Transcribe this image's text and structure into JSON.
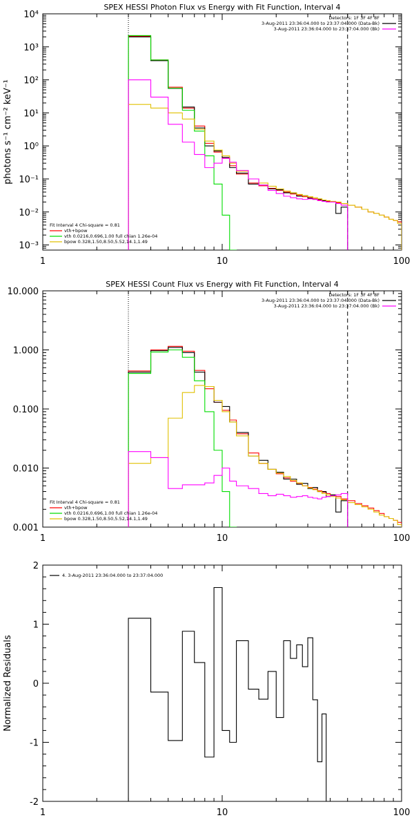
{
  "colors": {
    "data": "#000000",
    "fit_total": "#ff0000",
    "vth": "#00dd00",
    "bpow": "#e0c000",
    "background": "#ff00ff"
  },
  "chart_data": [
    {
      "type": "line",
      "step": true,
      "title": "SPEX HESSI Photon Flux vs Energy with Fit Function, Interval 4",
      "ylabel": "photons s⁻¹ cm⁻² keV⁻¹",
      "xlabel": "",
      "xscale": "log",
      "yscale": "log",
      "xlim": [
        1,
        100
      ],
      "ylim": [
        0.0007,
        10000
      ],
      "xticks": [
        {
          "v": 1,
          "label": "1"
        },
        {
          "v": 10,
          "label": "10"
        },
        {
          "v": 100,
          "label": "100"
        }
      ],
      "yticks": [
        {
          "v": 0.001,
          "label": "10⁻³"
        },
        {
          "v": 0.01,
          "label": "10⁻²"
        },
        {
          "v": 0.1,
          "label": "10⁻¹"
        },
        {
          "v": 1,
          "label": "10⁰"
        },
        {
          "v": 10,
          "label": "10¹"
        },
        {
          "v": 100,
          "label": "10²"
        },
        {
          "v": 1000,
          "label": "10³"
        },
        {
          "v": 10000,
          "label": "10⁴"
        }
      ],
      "vlines": [
        {
          "x": 3,
          "style": "dotted"
        },
        {
          "x": 50,
          "style": "dashed"
        }
      ],
      "legend_topright": [
        {
          "text": "Detectors: 1F 3F 4F 8F",
          "color": ""
        },
        {
          "text": "3-Aug-2011 23:36:04.000 to 23:37:04.000 (Data-Bk)",
          "color": "#000000"
        },
        {
          "text": "3-Aug-2011 23:36:04.000 to 23:37:04.000 (Bk)",
          "color": "#ff00ff"
        }
      ],
      "legend_bottomleft": [
        {
          "text": "Fit Interval 4   Chi-square = 0.81",
          "color": ""
        },
        {
          "text": "vth+bpow",
          "color": "#ff0000"
        },
        {
          "text": "vth 0.0216,0.696,1.00  full chian 1.26e-04",
          "color": "#00dd00"
        },
        {
          "text": "bpow 0.328,1.50,8.50,5.52,14.1,1.49",
          "color": "#e0c000"
        }
      ],
      "edges": [
        3,
        4,
        5,
        6,
        7,
        8,
        9,
        10,
        11,
        12,
        14,
        16,
        18,
        20,
        22,
        24,
        26,
        28,
        30,
        32,
        34,
        36,
        38,
        40,
        43,
        46,
        50,
        55,
        60,
        65,
        70,
        75,
        80,
        85,
        90,
        95,
        100
      ],
      "series": [
        {
          "color": "#ff0000",
          "values": [
            2100,
            400,
            60,
            14,
            4,
            1.2,
            0.65,
            0.42,
            0.25,
            0.14,
            0.075,
            0.062,
            0.052,
            0.045,
            0.04,
            0.035,
            0.032,
            0.029,
            0.027,
            0.025,
            0.023,
            0.022,
            0.021,
            0.02,
            0.019,
            0.018,
            0.016,
            0.014,
            0.012,
            0.01,
            0.009,
            0.008,
            0.007,
            0.006,
            0.0055,
            0.005
          ]
        },
        {
          "color": "#000000",
          "values": [
            2000,
            380,
            55,
            15,
            3.5,
            1.0,
            0.7,
            0.45,
            0.22,
            0.15,
            0.07,
            0.065,
            0.05,
            0.047,
            0.038,
            0.037,
            0.03,
            0.031,
            0.026,
            0.024,
            0.024,
            0.022,
            0.02,
            0.02,
            0.009,
            0.014
          ]
        },
        {
          "color": "#00dd00",
          "values": [
            2200,
            400,
            56,
            12,
            2.8,
            0.5,
            0.07,
            0.008,
            0.0007
          ]
        },
        {
          "color": "#e0c000",
          "values": [
            18,
            14,
            10,
            6.5,
            3.2,
            1.4,
            0.75,
            0.5,
            0.3,
            0.17,
            0.1,
            0.075,
            0.06,
            0.05,
            0.043,
            0.038,
            0.034,
            0.031,
            0.029,
            0.027,
            0.025,
            0.023,
            0.022,
            0.021,
            0.02,
            0.018,
            0.016,
            0.014,
            0.012,
            0.01,
            0.009,
            0.008,
            0.007,
            0.006,
            0.0055,
            0.0045
          ]
        },
        {
          "color": "#ff00ff",
          "values": [
            100,
            30,
            4.5,
            1.3,
            0.55,
            0.22,
            0.3,
            0.42,
            0.32,
            0.18,
            0.1,
            0.065,
            0.045,
            0.036,
            0.03,
            0.027,
            0.025,
            0.024,
            0.025,
            0.024,
            0.022,
            0.021,
            0.02,
            0.02,
            0.018,
            0.016
          ]
        }
      ]
    },
    {
      "type": "line",
      "step": true,
      "title": "SPEX HESSI Count Flux vs Energy with Fit Function, Interval 4",
      "ylabel": "",
      "xlabel": "",
      "xscale": "log",
      "yscale": "log",
      "xlim": [
        1,
        100
      ],
      "ylim": [
        0.001,
        10
      ],
      "xticks": [
        {
          "v": 1,
          "label": "1"
        },
        {
          "v": 10,
          "label": "10"
        },
        {
          "v": 100,
          "label": "100"
        }
      ],
      "yticks": [
        {
          "v": 0.001,
          "label": "0.001"
        },
        {
          "v": 0.01,
          "label": "0.010"
        },
        {
          "v": 0.1,
          "label": "0.100"
        },
        {
          "v": 1,
          "label": "1.000"
        },
        {
          "v": 10,
          "label": "10.000"
        }
      ],
      "vlines": [
        {
          "x": 3,
          "style": "dotted"
        },
        {
          "x": 50,
          "style": "dashed"
        }
      ],
      "legend_topright": [
        {
          "text": "Detectors: 1F 3F 4F 8F",
          "color": ""
        },
        {
          "text": "3-Aug-2011 23:36:04.000 to 23:37:04.000 (Data-Bk)",
          "color": "#000000"
        },
        {
          "text": "3-Aug-2011 23:36:04.000 to 23:37:04.000 (Bk)",
          "color": "#ff00ff"
        }
      ],
      "legend_bottomleft": [
        {
          "text": "Fit Interval 4   Chi-square = 0.81",
          "color": ""
        },
        {
          "text": "vth+bpow",
          "color": "#ff0000"
        },
        {
          "text": "vth 0.0216,0.696,1.00  full chian 1.26e-04",
          "color": "#00dd00"
        },
        {
          "text": "bpow 0.328,1.50,8.50,5.52,14.1,1.49",
          "color": "#e0c000"
        }
      ],
      "edges": [
        3,
        4,
        5,
        6,
        7,
        8,
        9,
        10,
        11,
        12,
        14,
        16,
        18,
        20,
        22,
        24,
        26,
        28,
        30,
        32,
        34,
        36,
        38,
        40,
        43,
        46,
        50,
        55,
        60,
        65,
        70,
        75,
        80,
        85,
        90,
        95,
        100
      ],
      "series": [
        {
          "color": "#ff0000",
          "values": [
            0.44,
            1.0,
            1.15,
            0.95,
            0.45,
            0.22,
            0.13,
            0.095,
            0.065,
            0.038,
            0.018,
            0.012,
            0.0095,
            0.008,
            0.0068,
            0.006,
            0.0055,
            0.005,
            0.0047,
            0.0044,
            0.0041,
            0.0039,
            0.0037,
            0.0035,
            0.0033,
            0.003,
            0.0028,
            0.0025,
            0.0023,
            0.0021,
            0.0019,
            0.0017,
            0.0015,
            0.0014,
            0.0013,
            0.0012
          ]
        },
        {
          "color": "#000000",
          "values": [
            0.42,
            0.97,
            1.1,
            0.9,
            0.42,
            0.24,
            0.13,
            0.11,
            0.06,
            0.04,
            0.016,
            0.0135,
            0.0095,
            0.0085,
            0.0065,
            0.0065,
            0.0053,
            0.0055,
            0.0045,
            0.0047,
            0.004,
            0.004,
            0.0033,
            0.0035,
            0.0018,
            0.0028
          ]
        },
        {
          "color": "#00dd00",
          "values": [
            0.4,
            0.92,
            1.0,
            0.75,
            0.3,
            0.09,
            0.02,
            0.004,
            0.001
          ]
        },
        {
          "color": "#e0c000",
          "values": [
            0.012,
            0.015,
            0.07,
            0.19,
            0.25,
            0.24,
            0.14,
            0.09,
            0.06,
            0.035,
            0.016,
            0.012,
            0.0095,
            0.0082,
            0.0072,
            0.0062,
            0.0056,
            0.005,
            0.0046,
            0.0043,
            0.004,
            0.0037,
            0.0035,
            0.0033,
            0.0031,
            0.0029,
            0.0026,
            0.0024,
            0.0022,
            0.002,
            0.0018,
            0.0016,
            0.0015,
            0.0014,
            0.0013,
            0.0011
          ]
        },
        {
          "color": "#ff00ff",
          "values": [
            0.019,
            0.015,
            0.0045,
            0.0052,
            0.0052,
            0.0056,
            0.0075,
            0.01,
            0.006,
            0.005,
            0.0045,
            0.0037,
            0.0034,
            0.0036,
            0.0034,
            0.0032,
            0.0033,
            0.0034,
            0.0032,
            0.0031,
            0.003,
            0.0032,
            0.0033,
            0.0034,
            0.0035,
            0.0037
          ]
        }
      ]
    },
    {
      "type": "line",
      "step": true,
      "title": "",
      "ylabel": "Normalized Residuals",
      "xlabel": "",
      "xscale": "log",
      "yscale": "linear",
      "xlim": [
        1,
        100
      ],
      "ylim": [
        -2,
        2
      ],
      "xticks": [
        {
          "v": 1,
          "label": "1"
        },
        {
          "v": 10,
          "label": "10"
        },
        {
          "v": 100,
          "label": "100"
        }
      ],
      "yticks": [
        {
          "v": -2,
          "label": "-2"
        },
        {
          "v": -1,
          "label": "-1"
        },
        {
          "v": 0,
          "label": "0"
        },
        {
          "v": 1,
          "label": "1"
        },
        {
          "v": 2,
          "label": "2"
        }
      ],
      "vlines": [],
      "legend_topleft": [
        {
          "text": "4.  3-Aug-2011 23:36:04.000 to 23:37:04.000",
          "color": "#000000"
        }
      ],
      "edges": [
        3,
        4,
        5,
        6,
        7,
        8,
        9,
        10,
        11,
        12,
        14,
        16,
        18,
        20,
        22,
        24,
        26,
        28,
        30,
        32,
        34,
        36,
        38,
        40,
        43,
        46,
        50
      ],
      "series": [
        {
          "color": "#000000",
          "values": [
            1.1,
            -0.15,
            -0.97,
            0.88,
            0.35,
            -1.25,
            1.62,
            -0.8,
            -1.0,
            0.72,
            -0.1,
            -0.27,
            0.2,
            -0.58,
            0.72,
            0.42,
            0.65,
            0.28,
            0.77,
            -0.28,
            -1.33,
            -0.52
          ]
        }
      ]
    }
  ]
}
